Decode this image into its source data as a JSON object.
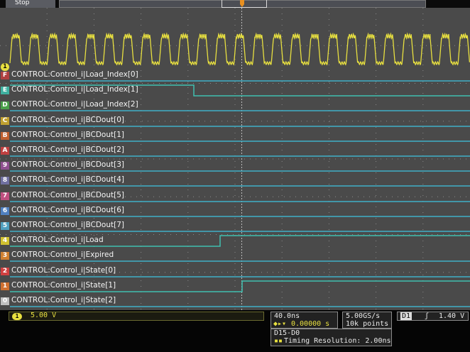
{
  "acquisition": {
    "state_label": "Stop"
  },
  "analog": {
    "channel": "1",
    "scale": "5.00 V"
  },
  "digital_channels": [
    {
      "id": "D15",
      "label": "CONTROL:Control_i|Load_Index[0]",
      "color": "#b04040"
    },
    {
      "id": "D14",
      "label": "CONTROL:Control_i|Load_Index[1]",
      "color": "#3fb0a0"
    },
    {
      "id": "D13",
      "label": "CONTROL:Control_i|Load_Index[2]",
      "color": "#4aa04a"
    },
    {
      "id": "D12",
      "label": "CONTROL:Control_i|BCDout[0]",
      "color": "#c0a030"
    },
    {
      "id": "D11",
      "label": "CONTROL:Control_i|BCDout[1]",
      "color": "#c06030"
    },
    {
      "id": "D10",
      "label": "CONTROL:Control_i|BCDout[2]",
      "color": "#c04040"
    },
    {
      "id": "D9",
      "label": "CONTROL:Control_i|BCDout[3]",
      "color": "#905090"
    },
    {
      "id": "D8",
      "label": "CONTROL:Control_i|BCDout[4]",
      "color": "#7070a0"
    },
    {
      "id": "D7",
      "label": "CONTROL:Control_i|BCDout[5]",
      "color": "#c05080"
    },
    {
      "id": "D6",
      "label": "CONTROL:Control_i|BCDout[6]",
      "color": "#5080c0"
    },
    {
      "id": "D5",
      "label": "CONTROL:Control_i|BCDout[7]",
      "color": "#50a0c0"
    },
    {
      "id": "D4",
      "label": "CONTROL:Control_i|Load",
      "color": "#d0c030"
    },
    {
      "id": "D3",
      "label": "CONTROL:Control_i|Expired",
      "color": "#d08030"
    },
    {
      "id": "D2",
      "label": "CONTROL:Control_i|State[0]",
      "color": "#d04040"
    },
    {
      "id": "D1",
      "label": "CONTROL:Control_i|State[1]",
      "color": "#d07030"
    },
    {
      "id": "D0",
      "label": "CONTROL:Control_i|State[2]",
      "color": "#c0c0c0"
    }
  ],
  "horizontal": {
    "scale": "40.0ns",
    "delay": "0.00000 s"
  },
  "sampling": {
    "rate": "5.00GS/s",
    "record": "10k points"
  },
  "trigger": {
    "source": "D1",
    "level": "1.40 V"
  },
  "digital_info": {
    "channels": "D15-D0",
    "resolution": "Timing Resolution: 2.00ns"
  }
}
